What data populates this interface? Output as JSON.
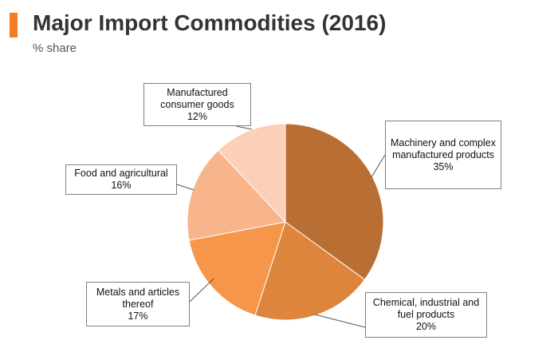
{
  "header": {
    "title": "Major Import Commodities (2016)",
    "subtitle": "% share",
    "accent_color": "#f47b20"
  },
  "chart_data": {
    "type": "pie",
    "title": "Major Import Commodities (2016)",
    "subtitle": "% share",
    "unit": "%",
    "slices": [
      {
        "label": "Machinery and complex manufactured products",
        "value": 35,
        "value_label": "35%",
        "color": "#b96f33"
      },
      {
        "label": "Chemical, industrial and fuel products",
        "value": 20,
        "value_label": "20%",
        "color": "#dd843d"
      },
      {
        "label": "Metals and articles thereof",
        "value": 17,
        "value_label": "17%",
        "color": "#f5964a"
      },
      {
        "label": "Food and agricultural",
        "value": 16,
        "value_label": "16%",
        "color": "#f8b48a"
      },
      {
        "label": "Manufactured consumer goods",
        "value": 12,
        "value_label": "12%",
        "color": "#fbcfb8"
      }
    ]
  }
}
